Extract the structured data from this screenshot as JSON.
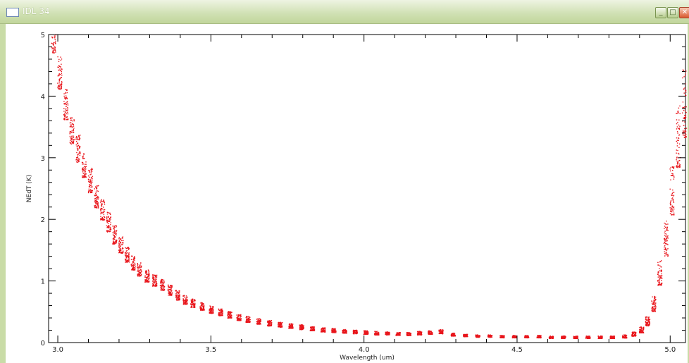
{
  "window": {
    "title": "IDL 34",
    "minimize_label": "_",
    "maximize_label": "□",
    "close_label": "✕"
  },
  "colors": {
    "points": "#e8161c",
    "titlebar": "#c9dca7"
  },
  "chart_data": {
    "type": "scatter",
    "title": "",
    "xlabel": "Wavelength (um)",
    "ylabel": "NEdT (K)",
    "xlim": [
      2.97,
      5.05
    ],
    "ylim": [
      0,
      5
    ],
    "xticks": [
      "3.0",
      "3.5",
      "4.0",
      "4.5",
      "5.0"
    ],
    "yticks": [
      "0",
      "1",
      "2",
      "3",
      "4",
      "5"
    ],
    "grid": false,
    "clusters_description": "Red points form short vertical streaks (one per spectral channel group); values decrease steeply from ~5 K near 3.0 um to ~0.1 K beyond 4.3 um, rising sharply again above 4.9 um.",
    "series": [
      {
        "x": [
          2.985,
          3.005,
          3.025,
          3.045,
          3.065,
          3.085,
          3.105,
          3.125,
          3.145,
          3.165,
          3.185,
          3.205,
          3.225,
          3.245,
          3.265,
          3.29,
          3.315,
          3.34,
          3.365,
          3.39,
          3.415,
          3.44,
          3.47,
          3.5,
          3.53,
          3.56,
          3.59,
          3.62,
          3.655,
          3.69,
          3.725,
          3.76,
          3.795,
          3.83,
          3.865,
          3.9,
          3.935,
          3.97,
          4.005,
          4.04,
          4.075,
          4.11,
          4.145,
          4.18,
          4.215,
          4.25,
          4.29,
          4.33,
          4.37,
          4.41,
          4.45,
          4.49,
          4.53,
          4.57,
          4.61,
          4.65,
          4.69,
          4.73,
          4.77,
          4.81,
          4.85,
          4.88,
          4.905,
          4.925,
          4.945,
          4.965,
          4.985,
          5.005,
          5.025,
          5.045
        ],
        "y": [
          4.8,
          4.2,
          3.7,
          3.3,
          3.0,
          2.75,
          2.5,
          2.25,
          2.05,
          1.85,
          1.65,
          1.5,
          1.35,
          1.22,
          1.12,
          1.02,
          0.95,
          0.88,
          0.8,
          0.72,
          0.65,
          0.6,
          0.55,
          0.5,
          0.46,
          0.42,
          0.38,
          0.35,
          0.32,
          0.29,
          0.27,
          0.25,
          0.23,
          0.21,
          0.19,
          0.18,
          0.17,
          0.16,
          0.15,
          0.14,
          0.14,
          0.13,
          0.13,
          0.14,
          0.15,
          0.16,
          0.12,
          0.11,
          0.1,
          0.1,
          0.09,
          0.09,
          0.09,
          0.09,
          0.08,
          0.08,
          0.08,
          0.08,
          0.08,
          0.08,
          0.09,
          0.12,
          0.18,
          0.3,
          0.55,
          1.0,
          1.5,
          2.2,
          3.0,
          3.5
        ],
        "spread": [
          0.6,
          0.55,
          0.5,
          0.45,
          0.45,
          0.4,
          0.4,
          0.38,
          0.35,
          0.32,
          0.3,
          0.28,
          0.25,
          0.23,
          0.22,
          0.2,
          0.19,
          0.18,
          0.17,
          0.16,
          0.15,
          0.14,
          0.13,
          0.12,
          0.11,
          0.11,
          0.1,
          0.1,
          0.09,
          0.09,
          0.08,
          0.08,
          0.08,
          0.07,
          0.07,
          0.07,
          0.06,
          0.06,
          0.06,
          0.06,
          0.05,
          0.05,
          0.05,
          0.06,
          0.06,
          0.07,
          0.05,
          0.04,
          0.04,
          0.04,
          0.04,
          0.04,
          0.04,
          0.04,
          0.04,
          0.04,
          0.04,
          0.04,
          0.04,
          0.04,
          0.05,
          0.07,
          0.1,
          0.15,
          0.25,
          0.4,
          0.6,
          0.8,
          1.0,
          1.1
        ]
      }
    ]
  }
}
